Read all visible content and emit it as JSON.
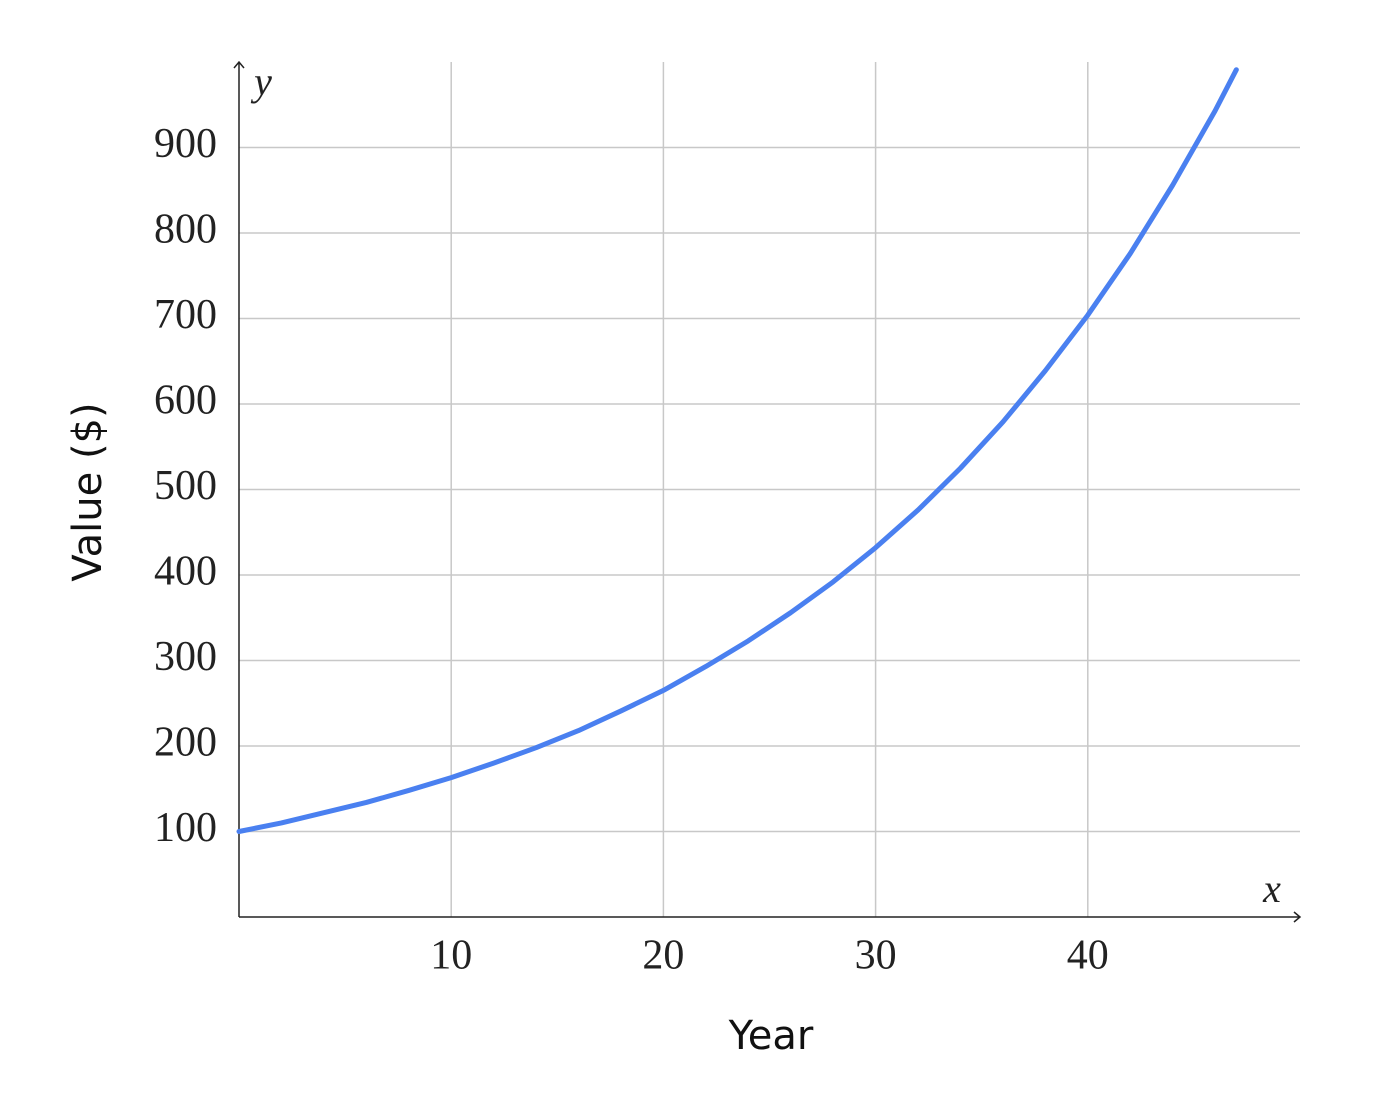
{
  "chart_data": {
    "type": "line",
    "x_label": "Year",
    "y_label": "Value ($)",
    "x_symbol": "x",
    "y_symbol": "y",
    "x": [
      0,
      2,
      4,
      6,
      8,
      10,
      12,
      14,
      16,
      18,
      20,
      22,
      24,
      26,
      28,
      30,
      32,
      34,
      36,
      38,
      40,
      42,
      44,
      46,
      47
    ],
    "series": [
      {
        "color": "#4a80f0",
        "values": [
          100,
          110,
          122,
          134,
          148,
          163,
          180,
          198,
          218,
          241,
          265,
          293,
          323,
          356,
          392,
          432,
          476,
          525,
          579,
          639,
          704,
          776,
          856,
          943,
          991
        ]
      }
    ],
    "xlim": [
      0,
      50
    ],
    "ylim": [
      0,
      1000
    ],
    "xticks": [
      10,
      20,
      30,
      40
    ],
    "yticks": [
      100,
      200,
      300,
      400,
      500,
      600,
      700,
      800,
      900
    ],
    "grid": true
  }
}
